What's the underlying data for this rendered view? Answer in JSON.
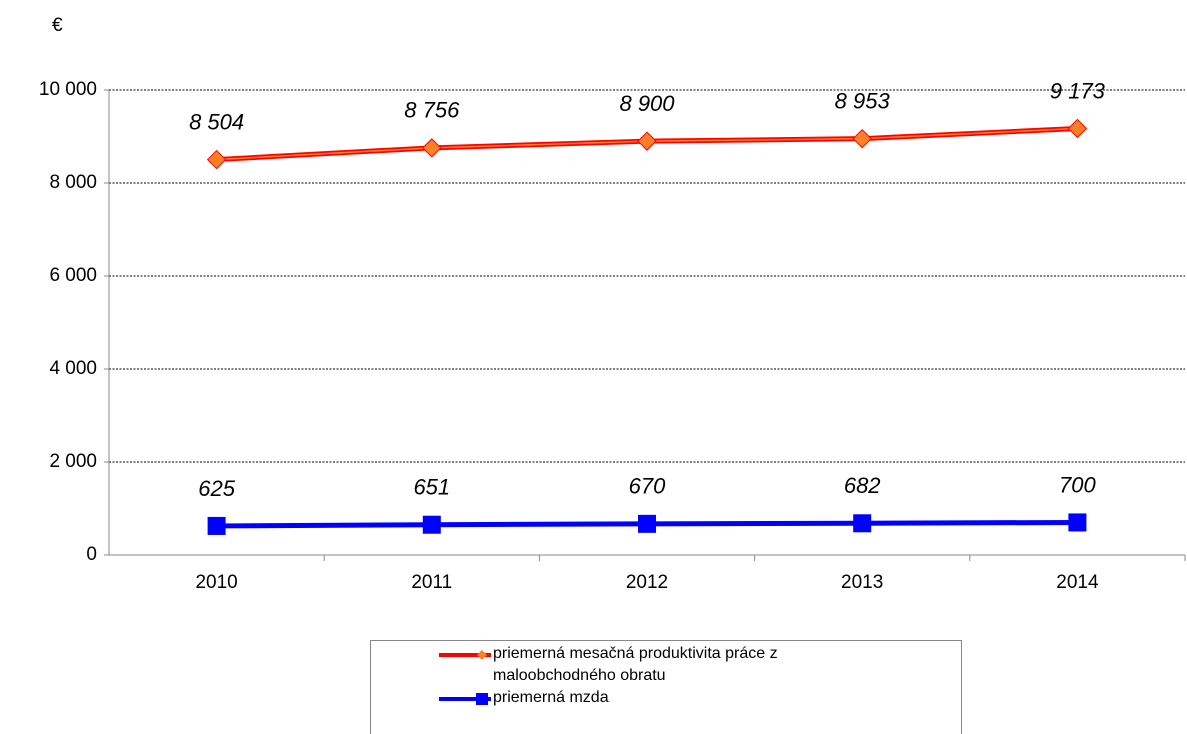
{
  "chart_data": {
    "type": "line",
    "y_label": "€",
    "categories": [
      "2010",
      "2011",
      "2012",
      "2013",
      "2014"
    ],
    "series": [
      {
        "name": "priemerná mesačná produktivita práce z maloobchodného  obratu",
        "color": "#ff0000",
        "marker_color": "#ff7f27",
        "marker": "diamond",
        "values": [
          8504,
          8756,
          8900,
          8953,
          9173
        ],
        "value_labels": [
          "8 504",
          "8 756",
          "8 900",
          "8 953",
          "9 173"
        ]
      },
      {
        "name": "priemerná mzda",
        "color": "#0000ff",
        "marker_color": "#0000ff",
        "marker": "square",
        "values": [
          625,
          651,
          670,
          682,
          700
        ]
      }
    ],
    "ylim": [
      0,
      10000
    ],
    "yticks": [
      0,
      {
        "value": 2000,
        "label": "2 000"
      },
      {
        "value": 4000,
        "label": "4 000"
      },
      {
        "value": 6000,
        "label": "6 000"
      },
      {
        "value": 8000,
        "label": "8 000"
      },
      {
        "value": 10000,
        "label": "10 000"
      }
    ],
    "grid": true,
    "legend": "bottom"
  }
}
